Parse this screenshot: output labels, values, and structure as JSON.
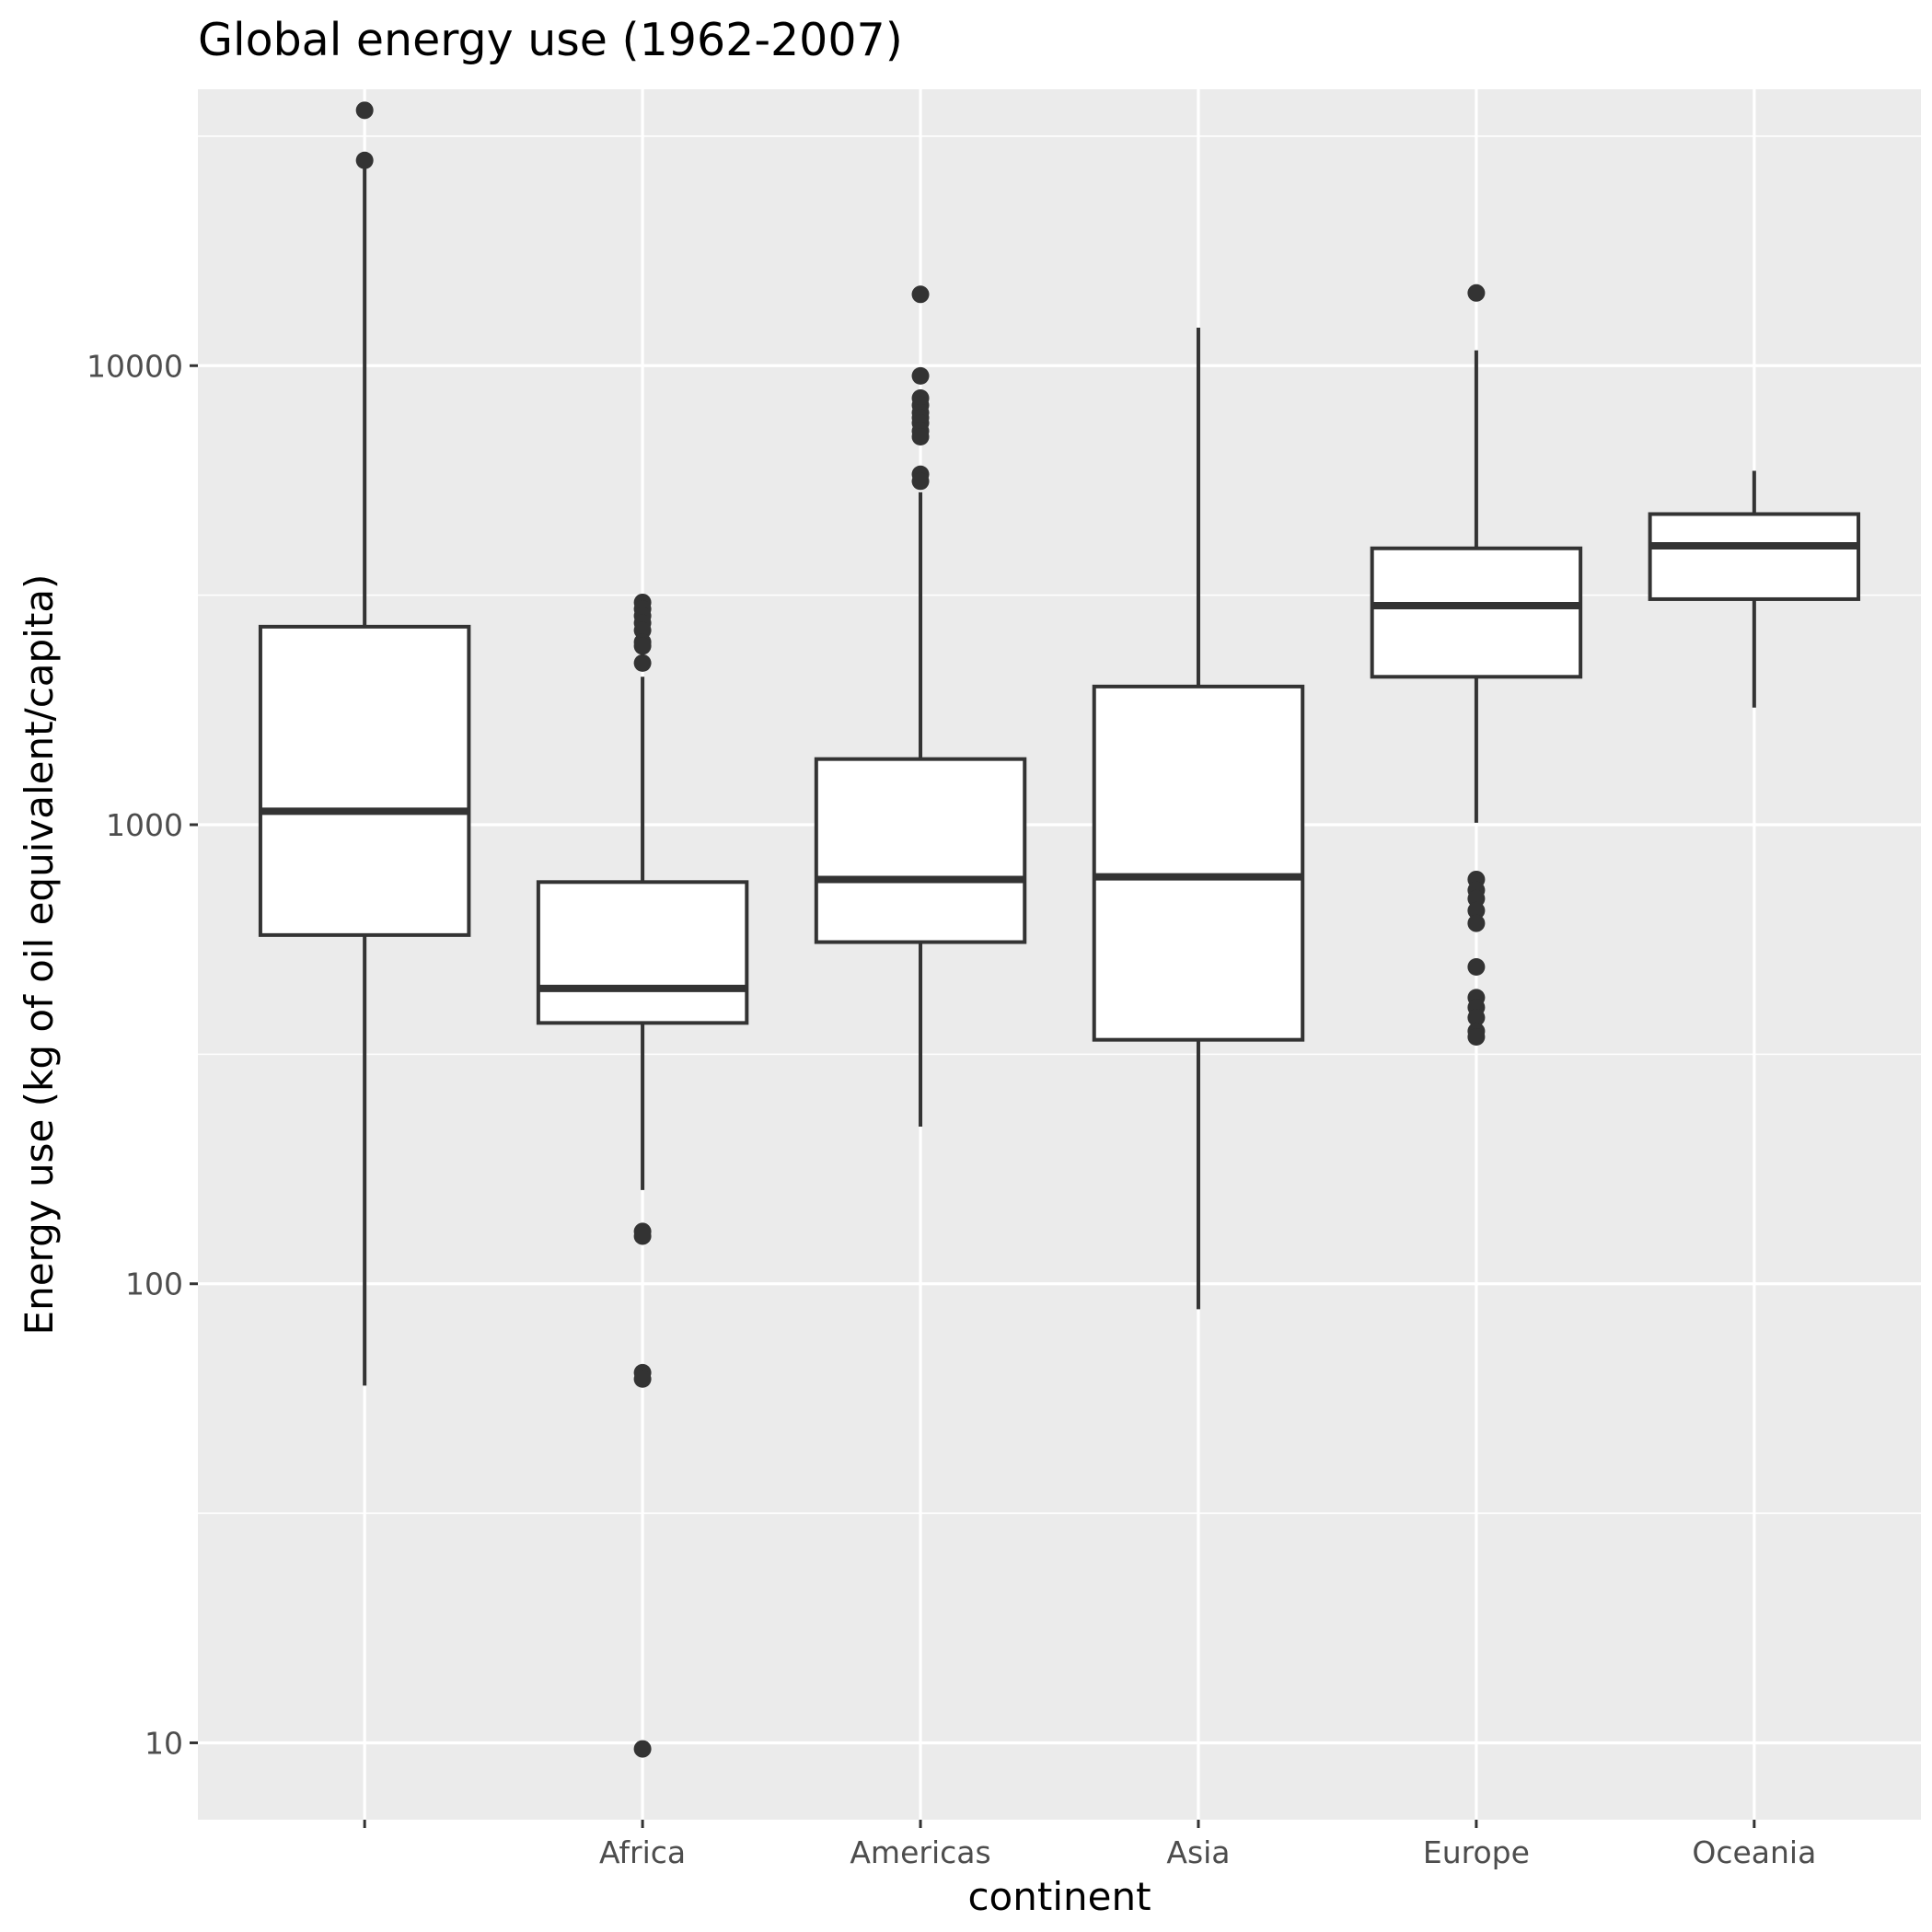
{
  "chart_data": {
    "type": "boxplot",
    "title": "Global energy use (1962-2007)",
    "xlabel": "continent",
    "ylabel": "Energy use (kg of oil equivalent/capita)",
    "yscale": "log10",
    "ylim": [
      6.8,
      40000
    ],
    "yticks": [
      10,
      100,
      1000,
      10000
    ],
    "ytick_labels": [
      "10",
      "100",
      "1000",
      "10000"
    ],
    "categories": [
      "",
      "Africa",
      "Americas",
      "Asia",
      "Europe",
      "Oceania"
    ],
    "boxes": [
      {
        "category": "",
        "min": 60,
        "q1": 575,
        "median": 1070,
        "q3": 2700,
        "max": 28000,
        "outliers": [
          36000,
          28000
        ]
      },
      {
        "category": "Africa",
        "min": 160,
        "q1": 370,
        "median": 440,
        "q3": 750,
        "max": 2100,
        "outliers": [
          3050,
          2950,
          2850,
          2750,
          2650,
          2500,
          2450,
          2250,
          130,
          127,
          64,
          62,
          9.7
        ]
      },
      {
        "category": "Americas",
        "min": 220,
        "q1": 555,
        "median": 760,
        "q3": 1390,
        "max": 5300,
        "outliers": [
          14300,
          9500,
          8500,
          8200,
          7900,
          7700,
          7500,
          7200,
          7000,
          5800,
          5600
        ]
      },
      {
        "category": "Asia",
        "min": 88,
        "q1": 340,
        "median": 770,
        "q3": 2000,
        "max": 12100,
        "outliers": []
      },
      {
        "category": "Europe",
        "min": 1010,
        "q1": 2100,
        "median": 3000,
        "q3": 4000,
        "max": 10800,
        "outliers": [
          14400,
          760,
          720,
          690,
          650,
          610,
          490,
          420,
          400,
          380,
          355,
          345
        ]
      },
      {
        "category": "Oceania",
        "min": 1800,
        "q1": 3100,
        "median": 4050,
        "q3": 4750,
        "max": 5900,
        "outliers": []
      }
    ],
    "colors": {
      "panel": "#ebebeb",
      "grid": "#ffffff",
      "box_fill": "#ffffff",
      "box_stroke": "#333333",
      "tick_text": "#4d4d4d",
      "title_text": "#000000"
    }
  }
}
